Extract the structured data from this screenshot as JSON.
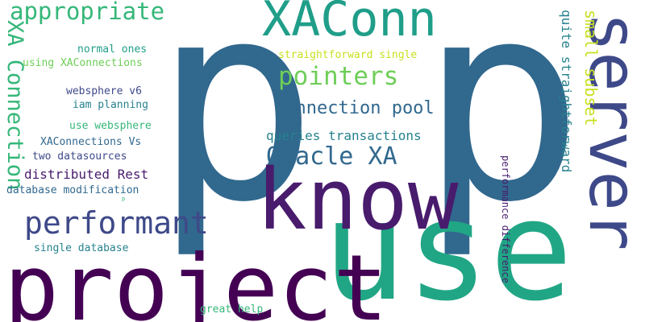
{
  "colors": {
    "dark_purple": "#440154",
    "indigo": "#3e4989",
    "steel_blue": "#31688e",
    "teal": "#26828e",
    "sea_green": "#1f9e89",
    "green": "#35b779",
    "lime": "#6ece58",
    "yellow": "#c8e020",
    "background": "#ffffff"
  },
  "words": {
    "p1": "p",
    "p2": "p",
    "use": "use",
    "project": "project",
    "know": "know",
    "server": "server",
    "xaconn": "XAConn",
    "performant": "performant",
    "appropriate": "appropriate",
    "xa_connection": "XA Connection",
    "pointers": "pointers",
    "oracle_xa": "Oracle XA",
    "connection_pool": "Connection pool",
    "small_subset": "small subset",
    "quite_straightforward": "quite straightforward",
    "queries_transactions": "queries transactions",
    "distributed_rest": "distributed Rest",
    "straightforward_single": "straightforward single",
    "normal_ones": "normal ones",
    "using_xaconnections": "using XAConnections",
    "websphere_v6": "websphere v6",
    "iam_planning": "iam planning",
    "use_websphere": "use websphere",
    "xaconnections_vs": "XAConnections Vs",
    "two_datasources": "two datasources",
    "database_modification": "database modification",
    "single_database": "single database",
    "great_help": "great help",
    "performance_difference": "performance difference",
    "p_small": "p"
  }
}
